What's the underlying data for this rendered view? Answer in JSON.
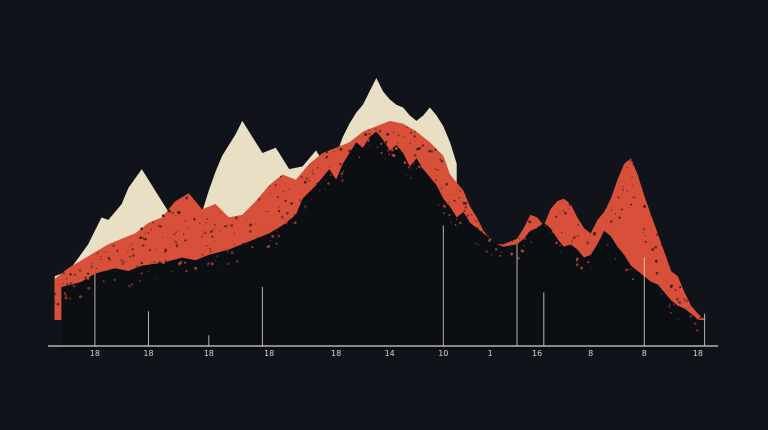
{
  "chart_data": {
    "type": "area",
    "title": "",
    "xlabel": "",
    "ylabel": "",
    "grid": false,
    "legend": "none",
    "colors": {
      "background": "#10141a",
      "peak": "#e9dfc4",
      "ridge": "#d9503a",
      "base": "#0b0e12",
      "axis": "#d8d2c4",
      "speckle": "#14161a"
    },
    "xlim": [
      0,
      100
    ],
    "ylim": [
      0,
      100
    ],
    "tick_labels": [
      {
        "x": 7,
        "text": "18"
      },
      {
        "x": 15,
        "text": "18"
      },
      {
        "x": 24,
        "text": "18"
      },
      {
        "x": 33,
        "text": "18"
      },
      {
        "x": 43,
        "text": "18"
      },
      {
        "x": 51,
        "text": "14"
      },
      {
        "x": 59,
        "text": "10"
      },
      {
        "x": 66,
        "text": "1"
      },
      {
        "x": 73,
        "text": "16"
      },
      {
        "x": 81,
        "text": "8"
      },
      {
        "x": 89,
        "text": "8"
      },
      {
        "x": 97,
        "text": "18"
      }
    ],
    "markers": [
      {
        "x": 7,
        "y": 27
      },
      {
        "x": 15,
        "y": 13
      },
      {
        "x": 24,
        "y": 4
      },
      {
        "x": 32,
        "y": 22
      },
      {
        "x": 59,
        "y": 45
      },
      {
        "x": 70,
        "y": 38
      },
      {
        "x": 74,
        "y": 20
      },
      {
        "x": 89,
        "y": 33
      },
      {
        "x": 98,
        "y": 12
      }
    ],
    "series": [
      {
        "layer": "peak",
        "x": [
          1,
          3,
          4,
          6,
          7,
          8,
          9,
          10,
          11,
          12,
          14,
          16,
          18,
          20,
          21,
          22,
          23,
          24,
          25,
          26,
          28,
          29,
          31,
          32,
          34,
          36,
          38,
          40,
          41,
          42,
          43,
          44,
          45,
          46,
          47,
          48,
          49,
          50,
          51,
          52,
          53,
          54,
          55,
          56,
          57,
          58,
          59,
          60,
          61
        ],
        "y": [
          26,
          28,
          31,
          38,
          43,
          48,
          47,
          50,
          53,
          59,
          66,
          58,
          50,
          46,
          44,
          46,
          50,
          58,
          65,
          71,
          79,
          84,
          76,
          72,
          74,
          66,
          67,
          73,
          69,
          69,
          71,
          78,
          83,
          87,
          90,
          95,
          100,
          95,
          92,
          90,
          89,
          86,
          84,
          86,
          89,
          86,
          82,
          76,
          68
        ]
      },
      {
        "layer": "ridge",
        "x": [
          1,
          3,
          5,
          7,
          9,
          11,
          13,
          15,
          17,
          19,
          21,
          23,
          25,
          27,
          29,
          31,
          33,
          35,
          37,
          39,
          41,
          43,
          45,
          47,
          49,
          51,
          53,
          55,
          57,
          59,
          60,
          61,
          62,
          63,
          64,
          65,
          66,
          67,
          68,
          70,
          71,
          72,
          73,
          74,
          75,
          76,
          77,
          78,
          79,
          80,
          81,
          82,
          83,
          84,
          85,
          86,
          87,
          88,
          89,
          90,
          91,
          92,
          93,
          94,
          95,
          96,
          97,
          98
        ],
        "y": [
          25,
          29,
          32,
          35,
          38,
          40,
          42,
          46,
          48,
          54,
          57,
          51,
          53,
          48,
          49,
          54,
          60,
          64,
          62,
          68,
          72,
          74,
          76,
          80,
          82,
          84,
          83,
          80,
          76,
          71,
          64,
          61,
          58,
          52,
          48,
          43,
          40,
          38,
          38,
          40,
          44,
          49,
          48,
          45,
          51,
          54,
          55,
          53,
          48,
          44,
          42,
          47,
          50,
          55,
          62,
          68,
          70,
          64,
          56,
          49,
          42,
          35,
          28,
          26,
          20,
          15,
          12,
          10
        ]
      },
      {
        "layer": "base",
        "x": [
          2,
          5,
          7,
          10,
          12,
          14,
          17,
          20,
          22,
          24,
          27,
          30,
          33,
          35,
          37,
          38,
          40,
          42,
          43,
          44,
          45,
          46,
          47,
          48,
          49,
          50,
          51,
          52,
          53,
          54,
          55,
          56,
          57,
          58,
          59,
          60,
          61,
          62,
          63,
          64,
          65,
          66,
          67,
          68,
          70,
          71,
          72,
          73,
          74,
          75,
          76,
          77,
          78,
          79,
          80,
          81,
          82,
          83,
          84,
          85,
          86,
          87,
          88,
          89,
          90,
          91,
          92,
          93,
          94,
          95,
          96,
          97,
          98
        ],
        "y": [
          22,
          24,
          27,
          29,
          28,
          30,
          31,
          33,
          32,
          34,
          36,
          39,
          42,
          45,
          49,
          55,
          60,
          66,
          62,
          68,
          72,
          76,
          74,
          78,
          80,
          77,
          73,
          75,
          72,
          67,
          70,
          66,
          63,
          60,
          55,
          52,
          48,
          50,
          46,
          44,
          42,
          40,
          38,
          37,
          38,
          40,
          43,
          44,
          46,
          44,
          40,
          37,
          38,
          36,
          33,
          34,
          38,
          43,
          41,
          37,
          34,
          30,
          28,
          26,
          24,
          23,
          20,
          17,
          15,
          14,
          12,
          10,
          9
        ]
      }
    ]
  }
}
